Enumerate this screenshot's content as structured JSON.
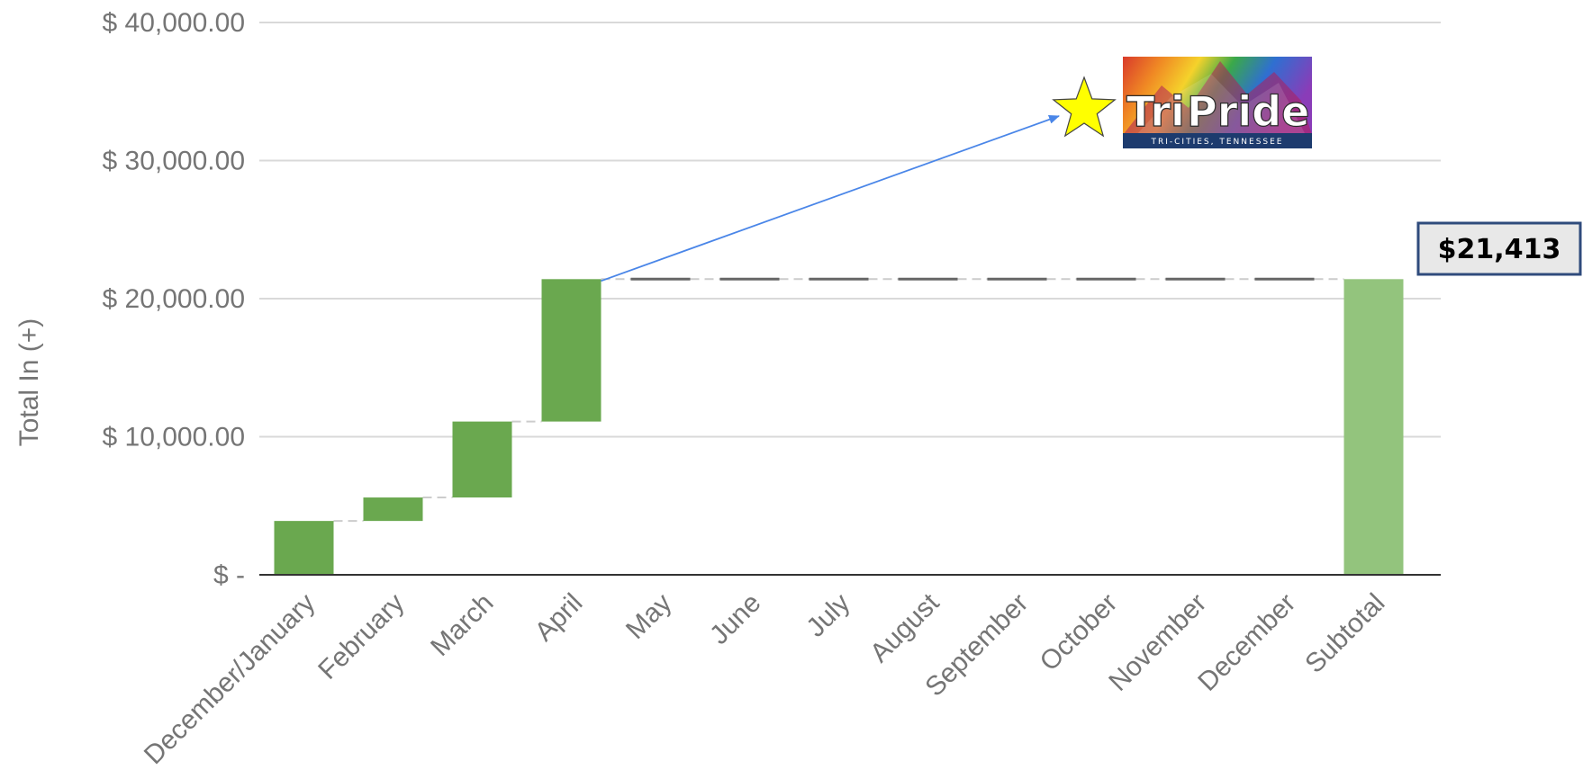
{
  "chart_data": {
    "type": "waterfall",
    "ylabel": "Total In (+)",
    "ylim": [
      0,
      40000
    ],
    "y_ticks": [
      {
        "value": 0,
        "label": "$ -"
      },
      {
        "value": 10000,
        "label": "$ 10,000.00"
      },
      {
        "value": 20000,
        "label": "$ 20,000.00"
      },
      {
        "value": 30000,
        "label": "$ 30,000.00"
      },
      {
        "value": 40000,
        "label": "$ 40,000.00"
      }
    ],
    "grid": true,
    "categories": [
      "December/January",
      "February",
      "March",
      "April",
      "May",
      "June",
      "July",
      "August",
      "September",
      "October",
      "November",
      "December",
      "Subtotal"
    ],
    "increments": [
      3900,
      1700,
      5500,
      10313,
      0,
      0,
      0,
      0,
      0,
      0,
      0,
      0
    ],
    "subtotal": 21413,
    "colors": {
      "increase": "#6aa84f",
      "subtotal": "#93c47d",
      "grid": "#d9d9d9",
      "baseline": "#333333",
      "connector": "#cccccc",
      "zero_connector": "#666666",
      "arrow": "#4a86e8",
      "callout_border": "#2f4b7c",
      "callout_fill": "#e8e8e8",
      "star_fill": "#ffff00",
      "star_stroke": "#444444"
    },
    "callout": {
      "label": "$21,413"
    },
    "annotation": {
      "icon": "star-icon",
      "arrow_from_category": "April"
    }
  },
  "logo": {
    "name": "TriPride",
    "word_a": "Tri",
    "word_b": "Pride",
    "tagline": "TRI-CITIES, TENNESSEE"
  }
}
